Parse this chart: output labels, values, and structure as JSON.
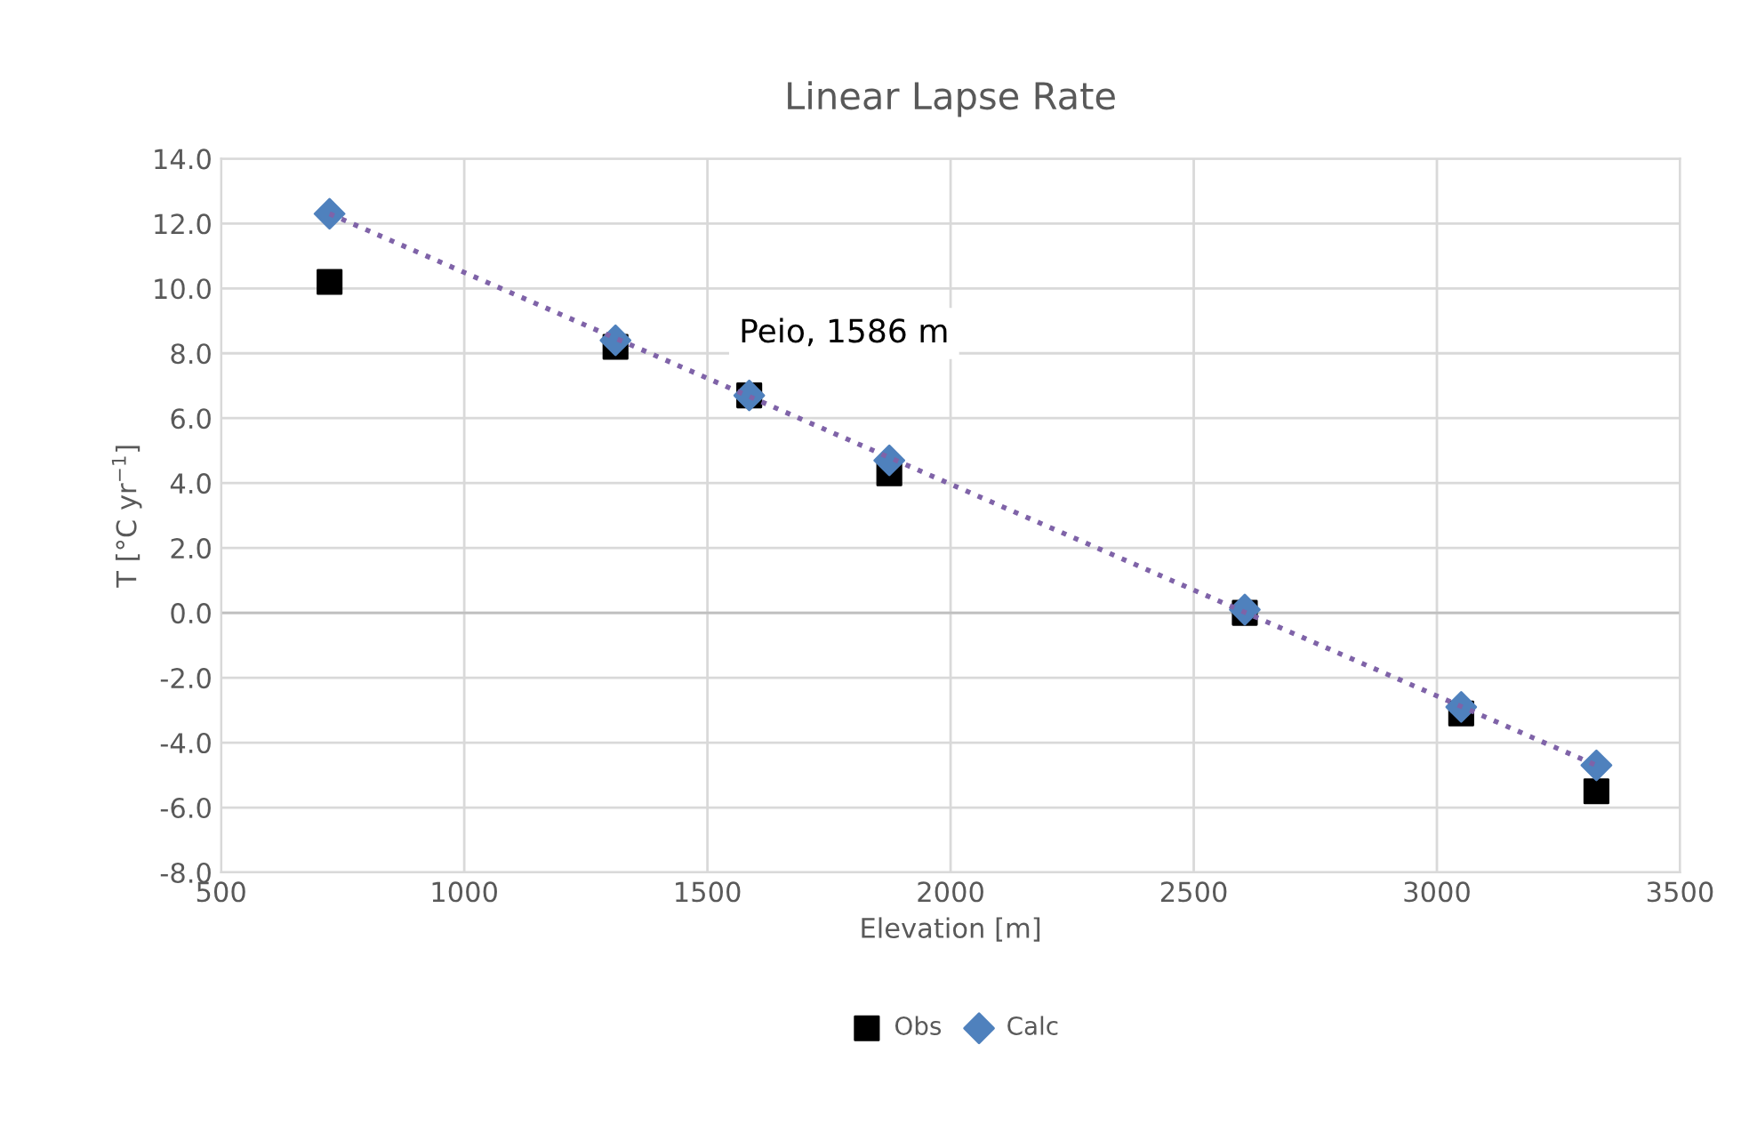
{
  "chart_data": {
    "type": "scatter",
    "title": "Linear Lapse Rate",
    "xlabel": "Elevation [m]",
    "ylabel": "T [°C yr$^{−1}$]",
    "x": [
      723,
      1311,
      1586,
      1874,
      2605,
      3050,
      3328
    ],
    "series": [
      {
        "name": "Obs",
        "color": "#000000",
        "marker": "square",
        "values": [
          10.2,
          8.2,
          6.7,
          4.3,
          0.0,
          -3.1,
          -5.5
        ]
      },
      {
        "name": "Calc",
        "color": "#4f81bd",
        "marker": "diamond",
        "values": [
          12.3,
          8.4,
          6.7,
          4.7,
          0.1,
          -2.9,
          -4.7
        ]
      },
      {
        "type": "line",
        "color": "#7f63a8",
        "line_style": "dotted",
        "marker": "none",
        "x": [
          723,
          3328
        ],
        "values": [
          12.3,
          -4.7
        ]
      }
    ],
    "annotations": [
      "Peio, 1586 m"
    ],
    "xlim": [
      500,
      3500
    ],
    "xticks": [
      500,
      1000,
      1500,
      2000,
      2500,
      3000,
      3500
    ],
    "ylim": [
      -8,
      14
    ],
    "yticks": [
      {
        "value": -8,
        "label": "-8.0"
      },
      {
        "value": -6,
        "label": "-6.0"
      },
      {
        "value": -4,
        "label": "-4.0"
      },
      {
        "value": -2,
        "label": "-2.0"
      },
      {
        "value": 0,
        "label": "0.0"
      },
      {
        "value": 2,
        "label": "2.0"
      },
      {
        "value": 4,
        "label": "4.0"
      },
      {
        "value": 6,
        "label": "6.0"
      },
      {
        "value": 8,
        "label": "8.0"
      },
      {
        "value": 10,
        "label": "10.0"
      },
      {
        "value": 12,
        "label": "12.0"
      },
      {
        "value": 14,
        "label": "14.0"
      }
    ],
    "grid": true,
    "legend": "bottom"
  }
}
